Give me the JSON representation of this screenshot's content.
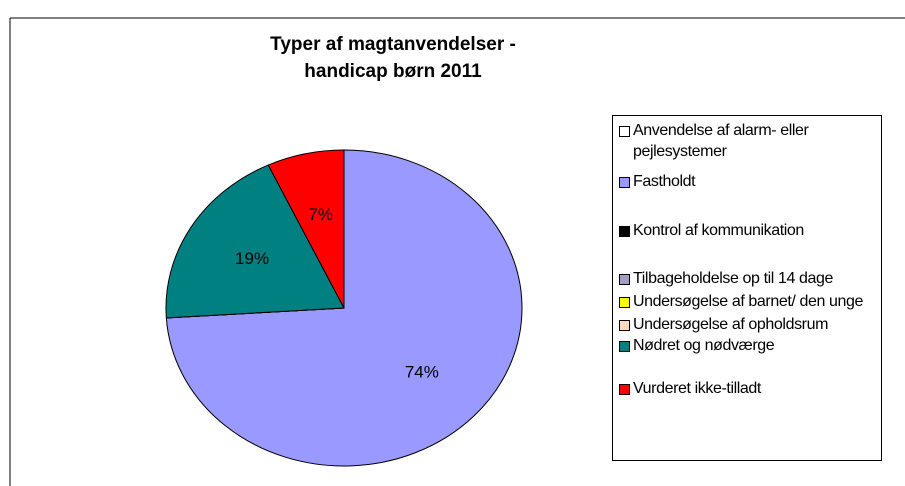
{
  "chart_data": {
    "type": "pie",
    "title": [
      "Typer af magtanvendelser -",
      "handicap børn  2011"
    ],
    "categories": [
      "Anvendelse af alarm- eller pejlesystemer",
      "Fastholdt",
      "Kontrol af kommunikation",
      "Tilbageholdelse op til 14 dage",
      "Undersøgelse af barnet/ den unge",
      "Undersøgelse af opholdsrum",
      "Nødret og nødværge",
      "Vurderet ikke-tilladt"
    ],
    "values": [
      0,
      74,
      0,
      0,
      0,
      0,
      19,
      7
    ],
    "value_labels": [
      null,
      "74%",
      null,
      null,
      null,
      null,
      "19%",
      "7%"
    ],
    "colors": [
      "#ffffff",
      "#9999ff",
      "#000000",
      "#a29ec4",
      "#ffff00",
      "#ffd9bf",
      "#008080",
      "#ff0000"
    ],
    "legend": "right"
  }
}
